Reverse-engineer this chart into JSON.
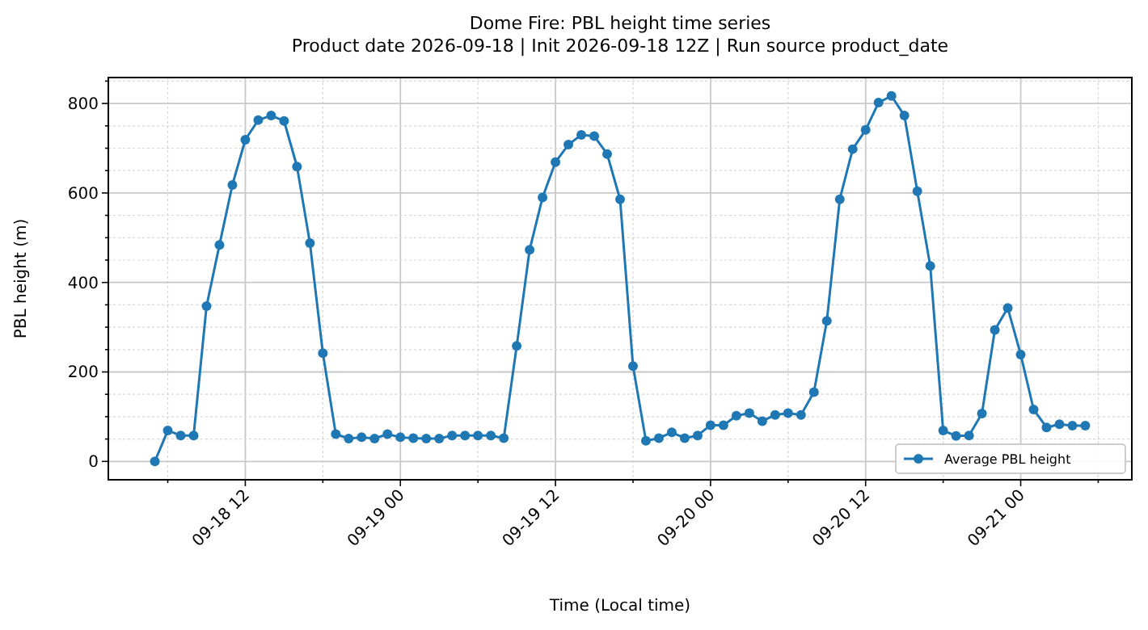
{
  "chart_data": {
    "type": "line",
    "title": "Dome Fire: PBL height time series",
    "subtitle": "Product date 2026-09-18 | Init 2026-09-18 12Z | Run source product_date",
    "xlabel": "Time (Local time)",
    "ylabel": "PBL height (m)",
    "x": [
      "2026-09-18T05:00",
      "2026-09-18T06:00",
      "2026-09-18T07:00",
      "2026-09-18T08:00",
      "2026-09-18T09:00",
      "2026-09-18T10:00",
      "2026-09-18T11:00",
      "2026-09-18T12:00",
      "2026-09-18T13:00",
      "2026-09-18T14:00",
      "2026-09-18T15:00",
      "2026-09-18T16:00",
      "2026-09-18T17:00",
      "2026-09-18T18:00",
      "2026-09-18T19:00",
      "2026-09-18T20:00",
      "2026-09-18T21:00",
      "2026-09-18T22:00",
      "2026-09-18T23:00",
      "2026-09-19T00:00",
      "2026-09-19T01:00",
      "2026-09-19T02:00",
      "2026-09-19T03:00",
      "2026-09-19T04:00",
      "2026-09-19T05:00",
      "2026-09-19T06:00",
      "2026-09-19T07:00",
      "2026-09-19T08:00",
      "2026-09-19T09:00",
      "2026-09-19T10:00",
      "2026-09-19T11:00",
      "2026-09-19T12:00",
      "2026-09-19T13:00",
      "2026-09-19T14:00",
      "2026-09-19T15:00",
      "2026-09-19T16:00",
      "2026-09-19T17:00",
      "2026-09-19T18:00",
      "2026-09-19T19:00",
      "2026-09-19T20:00",
      "2026-09-19T21:00",
      "2026-09-19T22:00",
      "2026-09-19T23:00",
      "2026-09-20T00:00",
      "2026-09-20T01:00",
      "2026-09-20T02:00",
      "2026-09-20T03:00",
      "2026-09-20T04:00",
      "2026-09-20T05:00",
      "2026-09-20T06:00",
      "2026-09-20T07:00",
      "2026-09-20T08:00",
      "2026-09-20T09:00",
      "2026-09-20T10:00",
      "2026-09-20T11:00",
      "2026-09-20T12:00",
      "2026-09-20T13:00",
      "2026-09-20T14:00",
      "2026-09-20T15:00",
      "2026-09-20T16:00",
      "2026-09-20T17:00",
      "2026-09-20T18:00",
      "2026-09-20T19:00",
      "2026-09-20T20:00",
      "2026-09-20T21:00",
      "2026-09-20T22:00",
      "2026-09-20T23:00",
      "2026-09-21T00:00",
      "2026-09-21T01:00",
      "2026-09-21T02:00",
      "2026-09-21T03:00",
      "2026-09-21T04:00",
      "2026-09-21T05:00"
    ],
    "series": [
      {
        "name": "Average PBL height",
        "color": "#1f77b4",
        "values": [
          0,
          69,
          58,
          58,
          347,
          484,
          618,
          719,
          763,
          773,
          761,
          659,
          488,
          242,
          61,
          51,
          54,
          51,
          61,
          54,
          52,
          51,
          51,
          58,
          58,
          58,
          58,
          52,
          258,
          473,
          590,
          669,
          708,
          730,
          727,
          687,
          586,
          213,
          46,
          52,
          65,
          52,
          58,
          81,
          81,
          102,
          108,
          90,
          104,
          108,
          104,
          155,
          314,
          586,
          698,
          741,
          802,
          817,
          773,
          604,
          437,
          69,
          57,
          58,
          107,
          294,
          343,
          239,
          116,
          76,
          83,
          80,
          80
        ]
      }
    ],
    "xlim": [
      "2026-09-18T01:24",
      "2026-09-21T08:36"
    ],
    "xticks": [
      {
        "value": "2026-09-18T06:00",
        "label": null
      },
      {
        "value": "2026-09-18T12:00",
        "label": "09-18 12"
      },
      {
        "value": "2026-09-18T18:00",
        "label": null
      },
      {
        "value": "2026-09-19T00:00",
        "label": "09-19 00"
      },
      {
        "value": "2026-09-19T06:00",
        "label": null
      },
      {
        "value": "2026-09-19T12:00",
        "label": "09-19 12"
      },
      {
        "value": "2026-09-19T18:00",
        "label": null
      },
      {
        "value": "2026-09-20T00:00",
        "label": "09-20 00"
      },
      {
        "value": "2026-09-20T06:00",
        "label": null
      },
      {
        "value": "2026-09-20T12:00",
        "label": "09-20 12"
      },
      {
        "value": "2026-09-20T18:00",
        "label": null
      },
      {
        "value": "2026-09-21T00:00",
        "label": "09-21 00"
      },
      {
        "value": "2026-09-21T06:00",
        "label": null
      }
    ],
    "ylim": [
      -41,
      858
    ],
    "yticks": [
      0,
      {
        "value": 50,
        "label": null
      },
      {
        "value": 100,
        "label": null
      },
      {
        "value": 150,
        "label": null
      },
      200,
      {
        "value": 250,
        "label": null
      },
      {
        "value": 300,
        "label": null
      },
      {
        "value": 350,
        "label": null
      },
      400,
      {
        "value": 450,
        "label": null
      },
      {
        "value": 500,
        "label": null
      },
      {
        "value": 550,
        "label": null
      },
      600,
      {
        "value": 650,
        "label": null
      },
      {
        "value": 700,
        "label": null
      },
      {
        "value": 750,
        "label": null
      },
      800,
      {
        "value": 850,
        "label": null
      }
    ],
    "grid": true,
    "legend": "bottom right",
    "marker": "circle",
    "line_style": "solid"
  }
}
